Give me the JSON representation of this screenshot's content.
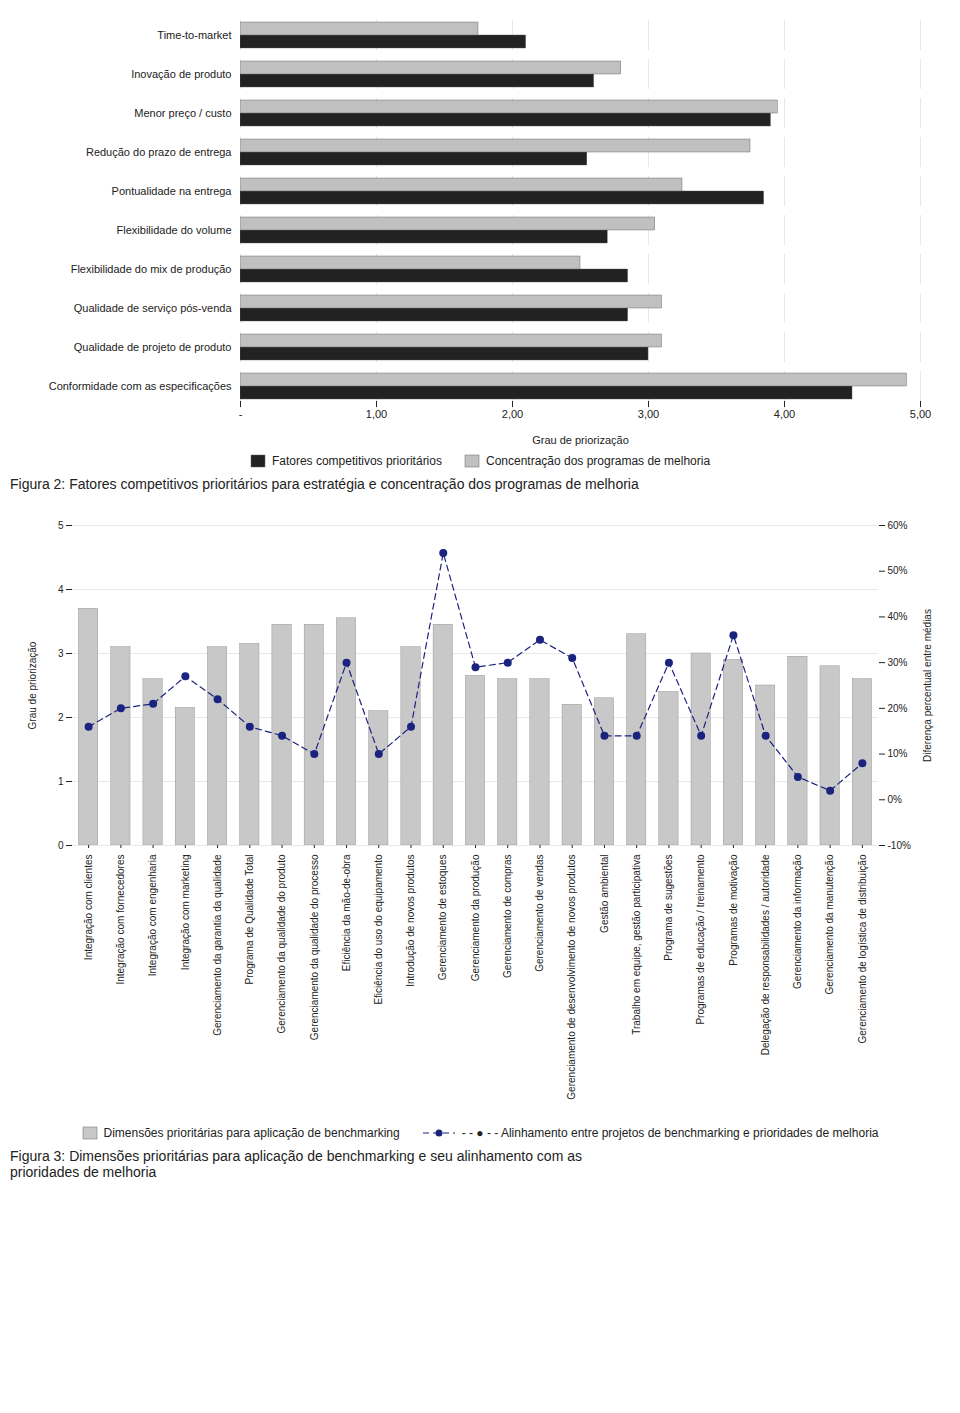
{
  "chart_data": [
    {
      "type": "bar",
      "orientation": "horizontal",
      "title": "Figura 2: Fatores competitivos prioritários para estratégia e concentração dos programas de melhoria",
      "categories": [
        "Time-to-market",
        "Inovação de produto",
        "Menor preço / custo",
        "Redução do prazo de entrega",
        "Pontualidade na entrega",
        "Flexibilidade do volume",
        "Flexibilidade do mix de produção",
        "Qualidade de serviço pós-venda",
        "Qualidade de projeto de produto",
        "Conformidade com as especificações"
      ],
      "series": [
        {
          "name": "Fatores competitivos prioritários",
          "color": "#222222",
          "values": [
            2.1,
            2.6,
            3.9,
            2.55,
            3.85,
            2.7,
            2.85,
            2.85,
            3.0,
            4.5
          ]
        },
        {
          "name": "Concentração dos programas de melhoria",
          "color": "#c0c0c0",
          "values": [
            1.75,
            2.8,
            3.95,
            3.75,
            3.25,
            3.05,
            2.5,
            3.1,
            3.1,
            4.9
          ]
        }
      ],
      "xlabel": "Grau de priorização",
      "xlim": [
        0,
        5
      ],
      "xticks": [
        {
          "value": 0,
          "label": "-"
        },
        {
          "value": 1,
          "label": "1,00"
        },
        {
          "value": 2,
          "label": "2,00"
        },
        {
          "value": 3,
          "label": "3,00"
        },
        {
          "value": 4,
          "label": "4,00"
        },
        {
          "value": 5,
          "label": "5,00"
        }
      ],
      "grid": true,
      "legend": "bottom"
    },
    {
      "type": "bar",
      "title": "Figura 3: Dimensões prioritárias para aplicação de benchmarking e seu alinhamento com as\nprioridades de melhoria",
      "categories": [
        "Integração com clientes",
        "Integração com fornecedores",
        "Integração com engenharia",
        "Integração com marketing",
        "Gerenciamento da garantia da qualidade",
        "Programa de Qualidade Total",
        "Gerenciamento da qualidade do produto",
        "Gerenciamento da qualidade do processo",
        "Eficiência da mão-de-obra",
        "Eficiência do uso do equipamento",
        "Introdução de novos produtos",
        "Gerenciamento de estoques",
        "Gerenciamento da produção",
        "Gerenciamento de compras",
        "Gerenciamento de vendas",
        "Gerenciamento de desenvolvimento de novos produtos",
        "Gestão ambiental",
        "Trabalho em equipe, gestão participativa",
        "Programa de sugestões",
        "Programas de educação / treinamento",
        "Programas de motivação",
        "Delegação de responsabilidades / autoridade",
        "Gerenciamento da informação",
        "Gerenciamento da manutenção",
        "Gerenciamento de logística de distribuição"
      ],
      "series": [
        {
          "name": "Dimensões prioritárias para aplicação de benchmarking",
          "type": "bar",
          "color": "#c8c8c8",
          "values": [
            3.7,
            3.1,
            2.6,
            2.15,
            3.1,
            3.15,
            3.45,
            3.45,
            3.55,
            2.1,
            3.1,
            3.45,
            2.65,
            2.6,
            2.6,
            2.2,
            2.3,
            3.3,
            2.4,
            3.0,
            2.9,
            2.5,
            2.95,
            2.8,
            2.6
          ]
        },
        {
          "name": "- -  ●  - - Alinhamento entre projetos de benchmarking e prioridades de melhoria",
          "type": "line",
          "axis": "y2",
          "color": "#1a237e",
          "marker": "circle",
          "line_style": "dashed",
          "values": [
            0.16,
            0.2,
            0.21,
            0.27,
            0.22,
            0.16,
            0.14,
            0.1,
            0.3,
            0.1,
            0.16,
            0.54,
            0.29,
            0.3,
            0.35,
            0.31,
            0.14,
            0.14,
            0.3,
            0.14,
            0.36,
            0.14,
            0.05,
            0.02,
            0.08
          ]
        }
      ],
      "ylabel": "Grau de priorização",
      "y2label": "Diferença percentual entre médias",
      "ylim": [
        0,
        5
      ],
      "yticks": [
        0,
        1,
        2,
        3,
        4,
        5
      ],
      "y2lim": [
        -0.1,
        0.6
      ],
      "y2ticks": [
        {
          "value": -0.1,
          "label": "-10%"
        },
        {
          "value": 0.0,
          "label": "0%"
        },
        {
          "value": 0.1,
          "label": "10%"
        },
        {
          "value": 0.2,
          "label": "20%"
        },
        {
          "value": 0.3,
          "label": "30%"
        },
        {
          "value": 0.4,
          "label": "40%"
        },
        {
          "value": 0.5,
          "label": "50%"
        },
        {
          "value": 0.6,
          "label": "60%"
        }
      ],
      "grid": true,
      "legend": "bottom"
    }
  ]
}
